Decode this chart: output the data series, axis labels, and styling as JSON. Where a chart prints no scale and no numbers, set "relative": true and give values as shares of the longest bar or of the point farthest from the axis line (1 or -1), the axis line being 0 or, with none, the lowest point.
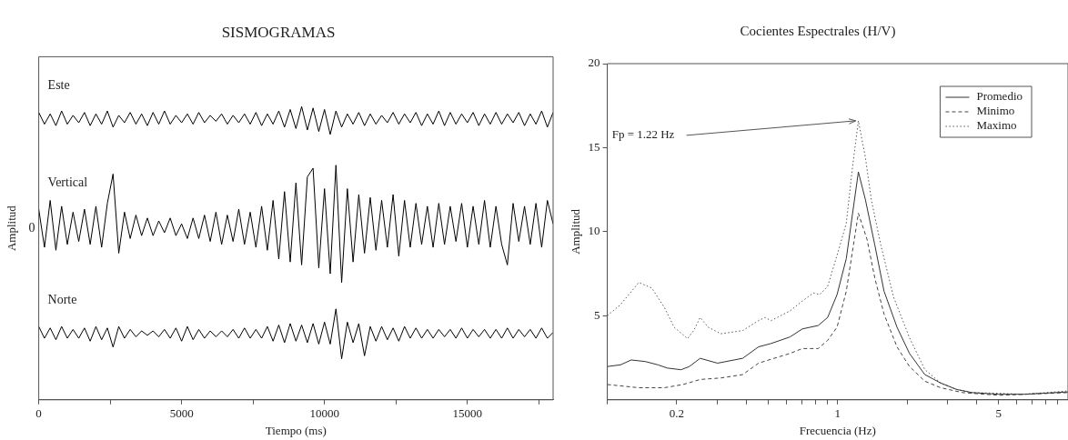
{
  "chart_data": [
    {
      "type": "line",
      "title": "SISMOGRAMAS",
      "xlabel": "Tiempo (ms)",
      "ylabel": "Amplitud",
      "relative": true,
      "grid": false,
      "marker": "none",
      "annotations": [
        "0"
      ],
      "xlim": [
        0,
        18000
      ],
      "xticks": [
        0,
        {
          "value": 2500,
          "label": null
        },
        5000,
        {
          "value": 7500,
          "label": null
        },
        10000,
        {
          "value": 12500,
          "label": null
        },
        15000,
        {
          "value": 17500,
          "label": null
        }
      ],
      "x": [
        0,
        200,
        400,
        600,
        800,
        1000,
        1200,
        1400,
        1600,
        1800,
        2000,
        2200,
        2400,
        2600,
        2800,
        3000,
        3200,
        3400,
        3600,
        3800,
        4000,
        4200,
        4400,
        4600,
        4800,
        5000,
        5200,
        5400,
        5600,
        5800,
        6000,
        6200,
        6400,
        6600,
        6800,
        7000,
        7200,
        7400,
        7600,
        7800,
        8000,
        8200,
        8400,
        8600,
        8800,
        9000,
        9200,
        9400,
        9600,
        9800,
        10000,
        10200,
        10400,
        10600,
        10800,
        11000,
        11200,
        11400,
        11600,
        11800,
        12000,
        12200,
        12400,
        12600,
        12800,
        13000,
        13200,
        13400,
        13600,
        13800,
        14000,
        14200,
        14400,
        14600,
        14800,
        15000,
        15200,
        15400,
        15600,
        15800,
        16000,
        16200,
        16400,
        16600,
        16800,
        17000,
        17200,
        17400,
        17600,
        17800,
        18000
      ],
      "series": [
        {
          "name": "Este",
          "color": "#000000",
          "values": [
            0.98,
            0.94,
            0.975,
            0.935,
            0.985,
            0.94,
            0.97,
            0.945,
            0.98,
            0.935,
            0.975,
            0.94,
            0.985,
            0.93,
            0.97,
            0.945,
            0.98,
            0.94,
            0.975,
            0.935,
            0.98,
            0.94,
            0.985,
            0.94,
            0.97,
            0.945,
            0.975,
            0.94,
            0.98,
            0.945,
            0.97,
            0.95,
            0.975,
            0.94,
            0.97,
            0.945,
            0.975,
            0.94,
            0.98,
            0.935,
            0.975,
            0.94,
            0.985,
            0.93,
            0.99,
            0.925,
            1.0,
            0.92,
            0.995,
            0.915,
            0.99,
            0.905,
            0.985,
            0.93,
            0.975,
            0.94,
            0.98,
            0.935,
            0.975,
            0.94,
            0.97,
            0.945,
            0.98,
            0.94,
            0.975,
            0.945,
            0.98,
            0.935,
            0.975,
            0.94,
            0.985,
            0.935,
            0.98,
            0.94,
            0.975,
            0.945,
            0.98,
            0.935,
            0.975,
            0.94,
            0.98,
            0.94,
            0.975,
            0.945,
            0.98,
            0.935,
            0.975,
            0.94,
            0.985,
            0.93,
            0.98
          ]
        },
        {
          "name": "Vertical",
          "color": "#000000",
          "values": [
            0.65,
            0.52,
            0.68,
            0.51,
            0.66,
            0.53,
            0.64,
            0.54,
            0.65,
            0.53,
            0.66,
            0.52,
            0.67,
            0.77,
            0.5,
            0.64,
            0.55,
            0.63,
            0.56,
            0.62,
            0.56,
            0.61,
            0.57,
            0.62,
            0.56,
            0.6,
            0.55,
            0.62,
            0.55,
            0.63,
            0.54,
            0.64,
            0.53,
            0.63,
            0.54,
            0.65,
            0.53,
            0.64,
            0.52,
            0.66,
            0.51,
            0.68,
            0.48,
            0.71,
            0.47,
            0.74,
            0.46,
            0.76,
            0.79,
            0.45,
            0.72,
            0.43,
            0.8,
            0.4,
            0.72,
            0.47,
            0.7,
            0.5,
            0.69,
            0.51,
            0.68,
            0.52,
            0.7,
            0.49,
            0.68,
            0.52,
            0.67,
            0.53,
            0.66,
            0.52,
            0.67,
            0.53,
            0.66,
            0.54,
            0.67,
            0.52,
            0.66,
            0.53,
            0.68,
            0.52,
            0.66,
            0.53,
            0.46,
            0.67,
            0.54,
            0.66,
            0.53,
            0.67,
            0.52,
            0.68,
            0.6
          ]
        },
        {
          "name": "Norte",
          "color": "#000000",
          "values": [
            0.25,
            0.21,
            0.245,
            0.205,
            0.25,
            0.21,
            0.24,
            0.21,
            0.245,
            0.2,
            0.25,
            0.205,
            0.245,
            0.18,
            0.25,
            0.21,
            0.24,
            0.215,
            0.235,
            0.22,
            0.235,
            0.215,
            0.24,
            0.21,
            0.245,
            0.2,
            0.25,
            0.205,
            0.24,
            0.21,
            0.235,
            0.215,
            0.235,
            0.215,
            0.24,
            0.21,
            0.245,
            0.21,
            0.24,
            0.21,
            0.25,
            0.2,
            0.255,
            0.195,
            0.26,
            0.2,
            0.255,
            0.195,
            0.26,
            0.19,
            0.265,
            0.19,
            0.31,
            0.14,
            0.265,
            0.195,
            0.26,
            0.15,
            0.25,
            0.2,
            0.25,
            0.205,
            0.245,
            0.2,
            0.25,
            0.21,
            0.245,
            0.21,
            0.24,
            0.21,
            0.24,
            0.215,
            0.24,
            0.21,
            0.245,
            0.21,
            0.24,
            0.215,
            0.24,
            0.21,
            0.24,
            0.21,
            0.245,
            0.21,
            0.24,
            0.215,
            0.24,
            0.21,
            0.245,
            0.21,
            0.23
          ]
        }
      ]
    },
    {
      "type": "line",
      "title": "Cocientes Espectrales (H/V)",
      "xlabel": "Frecuencia (Hz)",
      "ylabel": "Amplitud",
      "log": "x",
      "grid": false,
      "marker": "none",
      "legend": "top right",
      "xlim": [
        0.1,
        10
      ],
      "xticks": [
        {
          "value": 0.1,
          "label": null
        },
        0.2,
        {
          "value": 0.3,
          "label": null
        },
        {
          "value": 0.4,
          "label": null
        },
        {
          "value": 0.5,
          "label": null
        },
        {
          "value": 0.6,
          "label": null
        },
        {
          "value": 0.7,
          "label": null
        },
        {
          "value": 0.8,
          "label": null
        },
        {
          "value": 0.9,
          "label": null
        },
        1,
        {
          "value": 2,
          "label": null
        },
        {
          "value": 3,
          "label": null
        },
        {
          "value": 4,
          "label": null
        },
        5,
        {
          "value": 6,
          "label": null
        },
        {
          "value": 7,
          "label": null
        },
        {
          "value": 8,
          "label": null
        },
        {
          "value": 9,
          "label": null
        }
      ],
      "ylim": [
        0,
        20
      ],
      "yticks": [
        5,
        10,
        15,
        20
      ],
      "annotations": [
        {
          "text": "Fp = 1.22 Hz",
          "x": 1.22,
          "y": 16.6
        }
      ],
      "series": [
        {
          "name": "Promedio",
          "color": "#333333",
          "line_style": "solid",
          "x": [
            0.1,
            0.114,
            0.127,
            0.146,
            0.166,
            0.182,
            0.209,
            0.227,
            0.253,
            0.301,
            0.387,
            0.453,
            0.514,
            0.621,
            0.703,
            0.823,
            0.905,
            0.994,
            1.09,
            1.23,
            1.32,
            1.45,
            1.59,
            1.81,
            2.05,
            2.39,
            2.8,
            3.28,
            3.83,
            5,
            6.5,
            10
          ],
          "values": [
            1.98,
            2.08,
            2.37,
            2.28,
            2.08,
            1.89,
            1.79,
            1.98,
            2.47,
            2.18,
            2.47,
            3.15,
            3.35,
            3.74,
            4.22,
            4.42,
            4.9,
            6.26,
            8.4,
            13.56,
            11.9,
            9.2,
            6.46,
            4.32,
            2.76,
            1.5,
            1.0,
            0.62,
            0.43,
            0.33,
            0.33,
            0.47
          ]
        },
        {
          "name": "Minimo",
          "color": "#444444",
          "line_style": "dashed",
          "x": [
            0.1,
            0.137,
            0.177,
            0.213,
            0.253,
            0.311,
            0.387,
            0.453,
            0.53,
            0.621,
            0.703,
            0.823,
            0.905,
            0.994,
            1.09,
            1.23,
            1.34,
            1.45,
            1.59,
            1.81,
            2.05,
            2.39,
            2.8,
            3.49,
            5,
            10
          ],
          "values": [
            0.91,
            0.72,
            0.72,
            0.91,
            1.21,
            1.3,
            1.5,
            2.18,
            2.47,
            2.76,
            3.05,
            3.05,
            3.54,
            4.32,
            6.46,
            11.1,
            9.57,
            7.24,
            5.1,
            3.15,
            1.98,
            1.11,
            0.72,
            0.43,
            0.27,
            0.43
          ]
        },
        {
          "name": "Maximo",
          "color": "#555555",
          "line_style": "dotted",
          "x": [
            0.1,
            0.114,
            0.137,
            0.156,
            0.177,
            0.195,
            0.223,
            0.237,
            0.253,
            0.274,
            0.311,
            0.387,
            0.453,
            0.483,
            0.514,
            0.621,
            0.703,
            0.785,
            0.836,
            0.905,
            0.994,
            1.09,
            1.16,
            1.23,
            1.32,
            1.4,
            1.54,
            1.75,
            2.05,
            2.39,
            2.8,
            3.28,
            3.83,
            5,
            6.3,
            8.1,
            10
          ],
          "values": [
            5.0,
            5.66,
            6.98,
            6.65,
            5.49,
            4.32,
            3.64,
            4.12,
            4.9,
            4.32,
            3.93,
            4.12,
            4.71,
            4.9,
            4.71,
            5.29,
            5.88,
            6.36,
            6.26,
            6.75,
            8.6,
            10.5,
            13.85,
            16.6,
            14.4,
            11.9,
            9.2,
            6.1,
            3.7,
            1.8,
            1.0,
            0.62,
            0.43,
            0.39,
            0.33,
            0.43,
            0.53
          ]
        }
      ]
    }
  ]
}
